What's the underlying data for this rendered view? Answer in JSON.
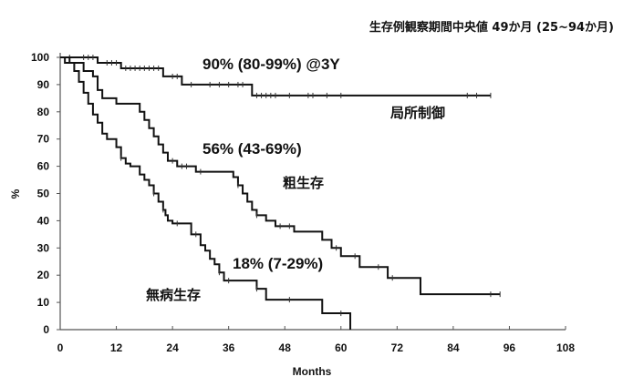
{
  "chart_data": {
    "type": "line",
    "subtype": "kaplan-meier-step",
    "title": "生存例観察期間中央値 49か月 (25~94か月)",
    "xlabel": "Months",
    "ylabel": "%",
    "xlim": [
      0,
      108
    ],
    "ylim": [
      0,
      100
    ],
    "xticks": [
      0,
      12,
      24,
      36,
      48,
      60,
      72,
      84,
      96,
      108
    ],
    "yticks": [
      0,
      10,
      20,
      30,
      40,
      50,
      60,
      70,
      80,
      90,
      100
    ],
    "grid": false,
    "legend": "inline labels",
    "series": [
      {
        "name": "局所制御",
        "annotation": "90% (80-99%) @3Y",
        "steps": [
          [
            0,
            100
          ],
          [
            8,
            98
          ],
          [
            13,
            96
          ],
          [
            22,
            93
          ],
          [
            26,
            90
          ],
          [
            41,
            86
          ],
          [
            92,
            86
          ]
        ],
        "censored": [
          2,
          5,
          6,
          7,
          10,
          11,
          12,
          14,
          15,
          16,
          17,
          18,
          19,
          20,
          21,
          24,
          25,
          28,
          32,
          34,
          36,
          38,
          39,
          42,
          43,
          44,
          45,
          46,
          49,
          53,
          54,
          57,
          60,
          87,
          89,
          92
        ]
      },
      {
        "name": "粗生存",
        "annotation": "56% (43-69%)",
        "steps": [
          [
            0,
            100
          ],
          [
            2,
            98
          ],
          [
            5,
            95
          ],
          [
            7,
            93
          ],
          [
            8,
            88
          ],
          [
            9,
            85
          ],
          [
            12,
            83
          ],
          [
            17,
            80
          ],
          [
            18,
            77
          ],
          [
            19,
            74
          ],
          [
            20,
            71
          ],
          [
            21,
            68
          ],
          [
            22,
            65
          ],
          [
            23,
            62
          ],
          [
            25,
            60
          ],
          [
            29,
            58
          ],
          [
            37,
            56
          ],
          [
            38,
            53
          ],
          [
            39,
            50
          ],
          [
            40,
            47
          ],
          [
            41,
            44
          ],
          [
            42,
            42
          ],
          [
            44,
            40
          ],
          [
            46,
            38
          ],
          [
            50,
            36
          ],
          [
            56,
            33
          ],
          [
            58,
            30
          ],
          [
            60,
            27
          ],
          [
            64,
            23
          ],
          [
            70,
            19
          ],
          [
            77,
            13
          ],
          [
            94,
            13
          ]
        ],
        "censored": [
          24,
          26,
          27,
          30,
          38,
          42,
          47,
          49,
          59,
          63,
          68,
          71,
          92,
          94
        ]
      },
      {
        "name": "無病生存",
        "annotation": "18% (7-29%)",
        "steps": [
          [
            0,
            100
          ],
          [
            1,
            98
          ],
          [
            3,
            95
          ],
          [
            4,
            91
          ],
          [
            5,
            87
          ],
          [
            6,
            83
          ],
          [
            7,
            79
          ],
          [
            8,
            76
          ],
          [
            9,
            72
          ],
          [
            10,
            70
          ],
          [
            12,
            67
          ],
          [
            13,
            63
          ],
          [
            14,
            61
          ],
          [
            15,
            60
          ],
          [
            17,
            57
          ],
          [
            18,
            55
          ],
          [
            19,
            53
          ],
          [
            20,
            50
          ],
          [
            21,
            47
          ],
          [
            22,
            44
          ],
          [
            22.5,
            42
          ],
          [
            23,
            40
          ],
          [
            24,
            39
          ],
          [
            28,
            35
          ],
          [
            30,
            31
          ],
          [
            31,
            29
          ],
          [
            32,
            26
          ],
          [
            33,
            24
          ],
          [
            34,
            21
          ],
          [
            35,
            18
          ],
          [
            42,
            15
          ],
          [
            44,
            11
          ],
          [
            56,
            6
          ],
          [
            62,
            0
          ]
        ],
        "censored": [
          13,
          20,
          22,
          25,
          29,
          34,
          36,
          42,
          49,
          60
        ]
      }
    ]
  },
  "labels": {
    "title": "生存例観察期間中央値 49か月 (25~94か月)",
    "xlabel": "Months",
    "ylabel": "%",
    "ann_lc": "90% (80-99%) @3Y",
    "name_lc": "局所制御",
    "ann_os": "56% (43-69%)",
    "name_os": "粗生存",
    "ann_dfs": "18% (7-29%)",
    "name_dfs": "無病生存"
  },
  "colors": {
    "line": "#111111",
    "axis": "#555555",
    "background": "#ffffff"
  }
}
